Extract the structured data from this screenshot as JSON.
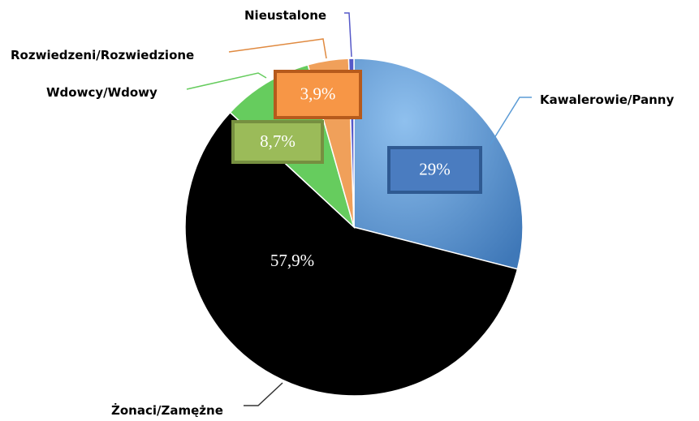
{
  "chart_data": {
    "type": "pie",
    "categories": [
      "Kawalerowie/Panny",
      "Żonaci/Zamężne",
      "Wdowcy/Wdowy",
      "Rozwiedzeni/Rozwiedzione",
      "Nieustalone"
    ],
    "values": [
      29,
      57.9,
      8.7,
      3.9,
      0.5
    ],
    "value_labels": [
      "29%",
      "57,9%",
      "8,7%",
      "3,9%",
      null
    ],
    "colors": [
      "#5b9bd5",
      "#000000",
      "#66cc5e",
      "#f0a05a",
      "#5558c8"
    ]
  }
}
